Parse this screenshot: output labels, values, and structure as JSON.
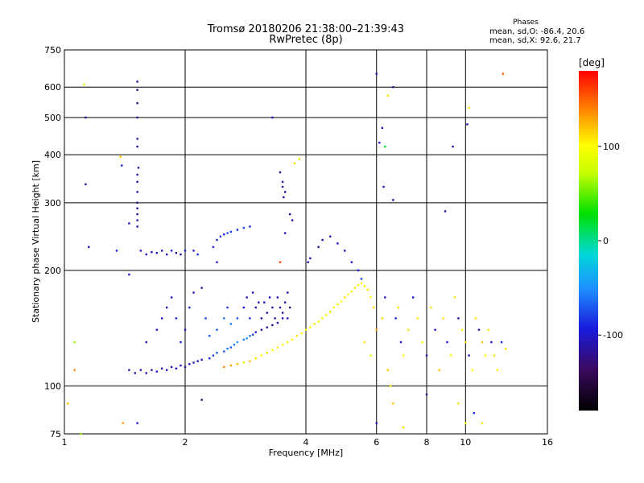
{
  "header": {
    "title_line1": "Tromsø 20180206 21:38:00–21:39:43",
    "title_line2": "RwPretec (8p)",
    "stats_heading": "Phases",
    "stats_o": "mean, sd,O: -86.4, 20.6",
    "stats_x": "mean, sd,X:  92.6, 21.7"
  },
  "colorbar": {
    "unit_label": "[deg]",
    "ticks": [
      {
        "value": 100,
        "label": "100"
      },
      {
        "value": 0,
        "label": "0"
      },
      {
        "value": -100,
        "label": "-100"
      }
    ],
    "range": [
      -180,
      180
    ]
  },
  "chart_data": {
    "type": "scatter",
    "xlabel": "Frequency [MHz]",
    "ylabel": "Stationary phase Virtual Height [km]",
    "x_scale": "log",
    "y_scale": "log",
    "xlim": [
      1,
      16
    ],
    "ylim": [
      75,
      750
    ],
    "x_ticks": [
      {
        "value": 1,
        "label": "1"
      },
      {
        "value": 2,
        "label": "2"
      },
      {
        "value": 4,
        "label": "4"
      },
      {
        "value": 6,
        "label": "6"
      },
      {
        "value": 8,
        "label": "8"
      },
      {
        "value": 10,
        "label": "10"
      },
      {
        "value": 16,
        "label": "16"
      }
    ],
    "y_ticks": [
      {
        "value": 75,
        "label": "75"
      },
      {
        "value": 100,
        "label": "100"
      },
      {
        "value": 200,
        "label": "200"
      },
      {
        "value": 300,
        "label": "300"
      },
      {
        "value": 400,
        "label": "400"
      },
      {
        "value": 500,
        "label": "500"
      },
      {
        "value": 600,
        "label": "600"
      },
      {
        "value": 750,
        "label": "750"
      }
    ],
    "x_gridlines": [
      2,
      4,
      6,
      8,
      10
    ],
    "y_gridlines": [
      100,
      200,
      300,
      400,
      500,
      600
    ],
    "color_by": "phase_deg",
    "points": [
      [
        1.06,
        110,
        140
      ],
      [
        1.12,
        610,
        80
      ],
      [
        1.13,
        500,
        -120
      ],
      [
        1.13,
        335,
        -110
      ],
      [
        1.15,
        230,
        -110
      ],
      [
        1.06,
        130,
        60
      ],
      [
        1.35,
        225,
        -90
      ],
      [
        1.38,
        395,
        120
      ],
      [
        1.39,
        375,
        -90
      ],
      [
        1.52,
        620,
        -120
      ],
      [
        1.52,
        590,
        -120
      ],
      [
        1.52,
        545,
        -120
      ],
      [
        1.52,
        500,
        -120
      ],
      [
        1.52,
        440,
        -120
      ],
      [
        1.52,
        420,
        -120
      ],
      [
        1.53,
        370,
        -120
      ],
      [
        1.52,
        355,
        -120
      ],
      [
        1.52,
        340,
        -110
      ],
      [
        1.52,
        320,
        -120
      ],
      [
        1.52,
        300,
        -120
      ],
      [
        1.52,
        290,
        -115
      ],
      [
        1.52,
        280,
        -120
      ],
      [
        1.52,
        270,
        -120
      ],
      [
        1.52,
        260,
        -120
      ],
      [
        1.45,
        265,
        -100
      ],
      [
        1.52,
        80,
        -100
      ],
      [
        1.55,
        225,
        -100
      ],
      [
        1.6,
        220,
        -100
      ],
      [
        1.65,
        223,
        -110
      ],
      [
        1.7,
        222,
        -95
      ],
      [
        1.75,
        225,
        -110
      ],
      [
        1.8,
        220,
        -100
      ],
      [
        1.85,
        225,
        -90
      ],
      [
        1.9,
        222,
        -110
      ],
      [
        1.95,
        220,
        -120
      ],
      [
        2.0,
        225,
        -90
      ],
      [
        2.1,
        225,
        -100
      ],
      [
        2.15,
        220,
        -90
      ],
      [
        1.45,
        195,
        -100
      ],
      [
        2.35,
        230,
        -90
      ],
      [
        2.4,
        240,
        -90
      ],
      [
        2.45,
        245,
        -80
      ],
      [
        2.5,
        248,
        -90
      ],
      [
        2.55,
        250,
        -75
      ],
      [
        2.6,
        252,
        -80
      ],
      [
        2.7,
        255,
        -90
      ],
      [
        2.8,
        258,
        -80
      ],
      [
        2.9,
        260,
        -90
      ],
      [
        2.4,
        210,
        -100
      ],
      [
        3.45,
        360,
        -120
      ],
      [
        3.5,
        340,
        -110
      ],
      [
        3.5,
        330,
        -120
      ],
      [
        3.55,
        320,
        -120
      ],
      [
        3.52,
        310,
        -110
      ],
      [
        3.65,
        280,
        -110
      ],
      [
        3.7,
        270,
        -120
      ],
      [
        3.55,
        250,
        -100
      ],
      [
        3.75,
        380,
        110
      ],
      [
        3.85,
        390,
        110
      ],
      [
        3.3,
        500,
        -100
      ],
      [
        3.45,
        210,
        160
      ],
      [
        3.6,
        175,
        -110
      ],
      [
        3.65,
        160,
        -120
      ],
      [
        3.6,
        150,
        -110
      ],
      [
        1.45,
        110,
        -110
      ],
      [
        1.5,
        108,
        -110
      ],
      [
        1.55,
        110,
        -110
      ],
      [
        1.6,
        108,
        -105
      ],
      [
        1.65,
        110,
        -110
      ],
      [
        1.7,
        109,
        -100
      ],
      [
        1.75,
        111,
        -110
      ],
      [
        1.8,
        110,
        -105
      ],
      [
        1.85,
        112,
        -110
      ],
      [
        1.9,
        111,
        -100
      ],
      [
        1.95,
        113,
        -105
      ],
      [
        2.0,
        112,
        -110
      ],
      [
        2.05,
        114,
        -100
      ],
      [
        2.1,
        115,
        -105
      ],
      [
        2.15,
        116,
        -100
      ],
      [
        2.2,
        117,
        -110
      ],
      [
        2.3,
        118,
        -90
      ],
      [
        2.35,
        120,
        -80
      ],
      [
        2.4,
        122,
        -70
      ],
      [
        2.5,
        123,
        -70
      ],
      [
        2.55,
        125,
        -60
      ],
      [
        2.6,
        126,
        -70
      ],
      [
        2.65,
        128,
        -60
      ],
      [
        2.7,
        130,
        -50
      ],
      [
        2.8,
        132,
        -55
      ],
      [
        2.85,
        133,
        -50
      ],
      [
        2.9,
        135,
        -60
      ],
      [
        2.95,
        136,
        -80
      ],
      [
        3.0,
        138,
        -100
      ],
      [
        3.1,
        140,
        -110
      ],
      [
        3.2,
        142,
        -115
      ],
      [
        3.3,
        144,
        -120
      ],
      [
        3.4,
        146,
        -115
      ],
      [
        3.5,
        150,
        -110
      ],
      [
        1.6,
        130,
        -110
      ],
      [
        1.7,
        140,
        -100
      ],
      [
        1.75,
        150,
        -105
      ],
      [
        1.8,
        160,
        -110
      ],
      [
        1.85,
        170,
        -100
      ],
      [
        1.9,
        150,
        -90
      ],
      [
        1.95,
        130,
        -95
      ],
      [
        2.0,
        140,
        -100
      ],
      [
        2.05,
        160,
        -90
      ],
      [
        2.1,
        175,
        -100
      ],
      [
        2.2,
        180,
        -110
      ],
      [
        2.25,
        150,
        -80
      ],
      [
        2.3,
        135,
        -70
      ],
      [
        2.4,
        140,
        -70
      ],
      [
        2.5,
        150,
        -60
      ],
      [
        2.55,
        160,
        -80
      ],
      [
        2.6,
        145,
        -60
      ],
      [
        2.7,
        150,
        -70
      ],
      [
        2.8,
        160,
        -100
      ],
      [
        2.85,
        170,
        -110
      ],
      [
        2.9,
        150,
        -80
      ],
      [
        2.95,
        175,
        -100
      ],
      [
        3.0,
        160,
        -100
      ],
      [
        3.05,
        165,
        -110
      ],
      [
        3.1,
        150,
        -120
      ],
      [
        3.15,
        165,
        -110
      ],
      [
        3.2,
        155,
        -120
      ],
      [
        3.25,
        170,
        -100
      ],
      [
        3.3,
        160,
        -115
      ],
      [
        3.35,
        150,
        -120
      ],
      [
        3.4,
        170,
        -110
      ],
      [
        3.45,
        160,
        -110
      ],
      [
        3.5,
        155,
        -120
      ],
      [
        3.55,
        165,
        -110
      ],
      [
        2.5,
        112,
        140
      ],
      [
        2.6,
        113,
        130
      ],
      [
        2.7,
        114,
        120
      ],
      [
        2.8,
        115,
        110
      ],
      [
        2.9,
        116,
        120
      ],
      [
        3.0,
        118,
        110
      ],
      [
        3.1,
        120,
        100
      ],
      [
        3.2,
        122,
        110
      ],
      [
        3.3,
        124,
        100
      ],
      [
        3.4,
        126,
        110
      ],
      [
        3.5,
        128,
        100
      ],
      [
        3.6,
        130,
        105
      ],
      [
        3.7,
        132,
        100
      ],
      [
        3.8,
        135,
        110
      ],
      [
        3.9,
        137,
        100
      ],
      [
        4.0,
        140,
        105
      ],
      [
        4.1,
        142,
        100
      ],
      [
        4.2,
        145,
        110
      ],
      [
        4.3,
        147,
        100
      ],
      [
        4.4,
        150,
        105
      ],
      [
        4.5,
        153,
        100
      ],
      [
        4.6,
        156,
        110
      ],
      [
        4.7,
        160,
        100
      ],
      [
        4.8,
        163,
        105
      ],
      [
        4.9,
        166,
        100
      ],
      [
        5.0,
        170,
        110
      ],
      [
        5.1,
        173,
        100
      ],
      [
        5.2,
        176,
        105
      ],
      [
        5.3,
        180,
        110
      ],
      [
        5.4,
        183,
        100
      ],
      [
        5.5,
        185,
        105
      ],
      [
        5.6,
        182,
        100
      ],
      [
        5.7,
        178,
        110
      ],
      [
        5.8,
        170,
        100
      ],
      [
        5.9,
        160,
        110
      ],
      [
        4.05,
        210,
        -120
      ],
      [
        4.1,
        215,
        -110
      ],
      [
        4.3,
        230,
        -120
      ],
      [
        4.4,
        240,
        -110
      ],
      [
        4.6,
        245,
        -110
      ],
      [
        4.8,
        235,
        -100
      ],
      [
        5.0,
        225,
        -110
      ],
      [
        5.2,
        210,
        -100
      ],
      [
        5.4,
        200,
        -90
      ],
      [
        5.5,
        190,
        -80
      ],
      [
        5.6,
        130,
        110
      ],
      [
        5.8,
        120,
        90
      ],
      [
        6.0,
        140,
        130
      ],
      [
        6.2,
        150,
        110
      ],
      [
        6.3,
        170,
        -100
      ],
      [
        6.4,
        110,
        120
      ],
      [
        6.5,
        100,
        110
      ],
      [
        6.6,
        90,
        120
      ],
      [
        6.7,
        150,
        -90
      ],
      [
        6.8,
        160,
        110
      ],
      [
        6.9,
        130,
        -100
      ],
      [
        7.0,
        120,
        100
      ],
      [
        7.2,
        140,
        110
      ],
      [
        7.4,
        170,
        -100
      ],
      [
        7.6,
        150,
        110
      ],
      [
        7.8,
        130,
        100
      ],
      [
        8.0,
        120,
        -110
      ],
      [
        8.2,
        160,
        110
      ],
      [
        8.4,
        140,
        -100
      ],
      [
        8.6,
        110,
        120
      ],
      [
        8.8,
        150,
        110
      ],
      [
        9.0,
        130,
        -100
      ],
      [
        9.2,
        120,
        100
      ],
      [
        9.4,
        170,
        110
      ],
      [
        9.6,
        150,
        -110
      ],
      [
        9.8,
        140,
        100
      ],
      [
        10.0,
        130,
        110
      ],
      [
        10.2,
        120,
        -100
      ],
      [
        10.4,
        110,
        100
      ],
      [
        10.6,
        150,
        110
      ],
      [
        10.8,
        140,
        -110
      ],
      [
        11.0,
        130,
        120
      ],
      [
        11.2,
        120,
        100
      ],
      [
        11.4,
        140,
        110
      ],
      [
        11.6,
        130,
        -100
      ],
      [
        11.8,
        120,
        110
      ],
      [
        12.0,
        110,
        100
      ],
      [
        12.3,
        130,
        -90
      ],
      [
        12.6,
        125,
        110
      ],
      [
        6.6,
        600,
        -120
      ],
      [
        6.1,
        430,
        -100
      ],
      [
        6.2,
        470,
        -110
      ],
      [
        6.25,
        330,
        -110
      ],
      [
        6.3,
        420,
        20
      ],
      [
        6.6,
        305,
        -120
      ],
      [
        6.0,
        650,
        -110
      ],
      [
        9.3,
        420,
        -120
      ],
      [
        8.9,
        285,
        -110
      ],
      [
        10.1,
        480,
        -110
      ],
      [
        10.2,
        530,
        110
      ],
      [
        12.4,
        650,
        150
      ],
      [
        6.4,
        570,
        110
      ],
      [
        6.0,
        80,
        -100
      ],
      [
        7.0,
        78,
        110
      ],
      [
        8.0,
        95,
        -120
      ],
      [
        9.6,
        90,
        110
      ],
      [
        10.0,
        80,
        100
      ],
      [
        10.5,
        85,
        -90
      ],
      [
        11.0,
        80,
        110
      ],
      [
        2.2,
        92,
        -130
      ],
      [
        1.1,
        75,
        60
      ],
      [
        1.4,
        80,
        130
      ],
      [
        1.02,
        90,
        120
      ]
    ]
  }
}
